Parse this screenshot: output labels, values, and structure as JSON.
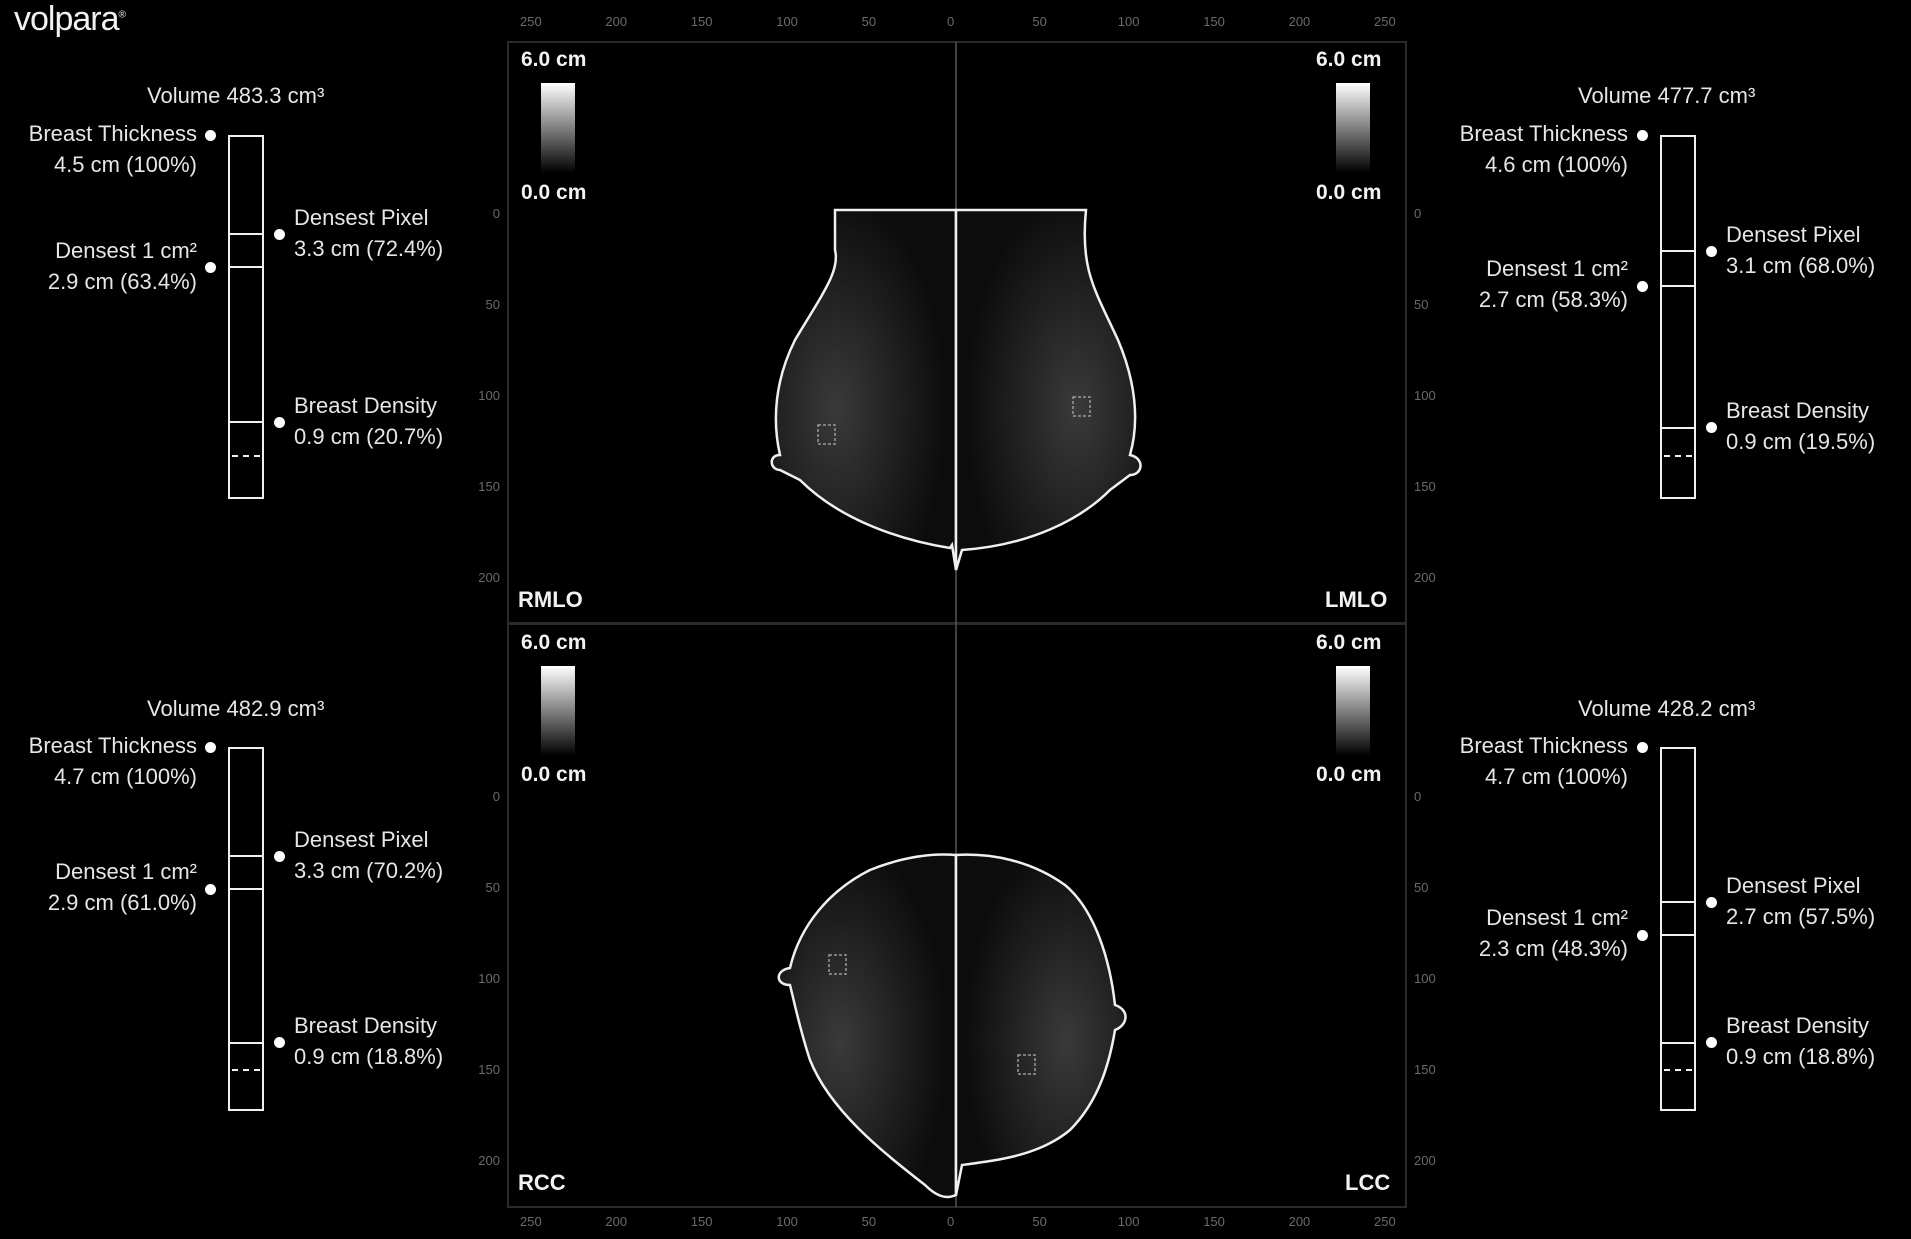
{
  "brand": {
    "logo_text": "volpara",
    "logo_mark": "®"
  },
  "colorbar": {
    "max_label": "6.0 cm",
    "min_label": "0.0 cm"
  },
  "axes": {
    "x_ticks": [
      "250",
      "200",
      "150",
      "100",
      "50",
      "0",
      "50",
      "100",
      "150",
      "200",
      "250"
    ],
    "y_ticks": [
      "0",
      "50",
      "100",
      "150",
      "200"
    ]
  },
  "views": {
    "rmlo": {
      "label": "RMLO",
      "volume": "Volume 483.3 cm³",
      "thickness_title": "Breast Thickness",
      "thickness_value": "4.5 cm (100%)",
      "densest_pixel_title": "Densest Pixel",
      "densest_pixel_value": "3.3 cm (72.4%)",
      "densest_1cm_title": "Densest 1 cm²",
      "densest_1cm_value": "2.9 cm (63.4%)",
      "density_title": "Breast Density",
      "density_value": "0.9 cm (20.7%)"
    },
    "lmlo": {
      "label": "LMLO",
      "volume": "Volume 477.7 cm³",
      "thickness_title": "Breast Thickness",
      "thickness_value": "4.6 cm (100%)",
      "densest_pixel_title": "Densest Pixel",
      "densest_pixel_value": "3.1 cm (68.0%)",
      "densest_1cm_title": "Densest 1 cm²",
      "densest_1cm_value": "2.7 cm (58.3%)",
      "density_title": "Breast Density",
      "density_value": "0.9 cm (19.5%)"
    },
    "rcc": {
      "label": "RCC",
      "volume": "Volume 482.9 cm³",
      "thickness_title": "Breast Thickness",
      "thickness_value": "4.7 cm (100%)",
      "densest_pixel_title": "Densest Pixel",
      "densest_pixel_value": "3.3 cm (70.2%)",
      "densest_1cm_title": "Densest 1 cm²",
      "densest_1cm_value": "2.9 cm (61.0%)",
      "density_title": "Breast Density",
      "density_value": "0.9 cm (18.8%)"
    },
    "lcc": {
      "label": "LCC",
      "volume": "Volume 428.2 cm³",
      "thickness_title": "Breast Thickness",
      "thickness_value": "4.7 cm (100%)",
      "densest_pixel_title": "Densest Pixel",
      "densest_pixel_value": "2.7 cm (57.5%)",
      "densest_1cm_title": "Densest 1 cm²",
      "densest_1cm_value": "2.3 cm (48.3%)",
      "density_title": "Breast Density",
      "density_value": "0.9 cm (18.8%)"
    }
  }
}
